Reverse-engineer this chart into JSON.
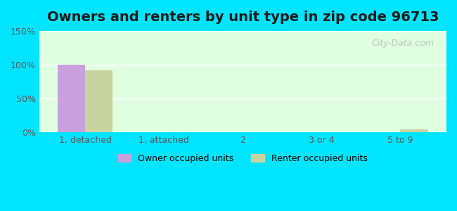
{
  "title": "Owners and renters by unit type in zip code 96713",
  "categories": [
    "1, detached",
    "1, attached",
    "2",
    "3 or 4",
    "5 to 9"
  ],
  "owner_values": [
    100,
    0,
    0,
    0,
    0
  ],
  "renter_values": [
    92,
    0,
    0,
    0,
    5
  ],
  "owner_color": "#c9a0dc",
  "renter_color": "#c8d4a0",
  "ylim": [
    0,
    150
  ],
  "yticks": [
    0,
    50,
    100,
    150
  ],
  "ytick_labels": [
    "0%",
    "50%",
    "100%",
    "150%"
  ],
  "background_color": "#e0ffe0",
  "outer_background": "#00e5ff",
  "bar_width": 0.35,
  "title_fontsize": 14,
  "watermark": "City-Data.com",
  "legend_labels": [
    "Owner occupied units",
    "Renter occupied units"
  ]
}
